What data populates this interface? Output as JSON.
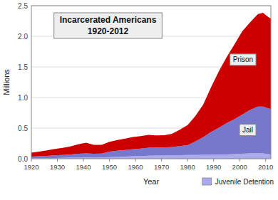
{
  "chart_data": {
    "type": "area",
    "stacked": true,
    "title": "Incarcerated Americans",
    "subtitle": "1920-2012",
    "x_label": "Year",
    "y_label": "Millions",
    "x": [
      1920,
      1923,
      1926,
      1929,
      1932,
      1935,
      1938,
      1941,
      1944,
      1947,
      1950,
      1953,
      1956,
      1959,
      1962,
      1965,
      1968,
      1971,
      1974,
      1977,
      1980,
      1983,
      1986,
      1989,
      1992,
      1995,
      1998,
      2001,
      2004,
      2007,
      2009,
      2011,
      2012
    ],
    "series": [
      {
        "name": "Juvenile Detention",
        "color": "#aaaaee",
        "values": [
          0.01,
          0.011,
          0.012,
          0.013,
          0.014,
          0.016,
          0.018,
          0.02,
          0.018,
          0.02,
          0.025,
          0.03,
          0.035,
          0.04,
          0.045,
          0.05,
          0.052,
          0.053,
          0.055,
          0.057,
          0.06,
          0.062,
          0.063,
          0.065,
          0.067,
          0.07,
          0.075,
          0.08,
          0.087,
          0.092,
          0.088,
          0.075,
          0.07
        ]
      },
      {
        "name": "Jail",
        "color": "#7777cc",
        "values": [
          0.025,
          0.03,
          0.035,
          0.042,
          0.048,
          0.055,
          0.062,
          0.068,
          0.063,
          0.063,
          0.09,
          0.1,
          0.108,
          0.115,
          0.12,
          0.13,
          0.13,
          0.13,
          0.138,
          0.148,
          0.16,
          0.22,
          0.29,
          0.37,
          0.44,
          0.51,
          0.57,
          0.64,
          0.71,
          0.76,
          0.765,
          0.748,
          0.74
        ]
      },
      {
        "name": "Prison",
        "color": "#cc0000",
        "values": [
          0.065,
          0.075,
          0.09,
          0.105,
          0.115,
          0.13,
          0.155,
          0.175,
          0.145,
          0.145,
          0.16,
          0.175,
          0.185,
          0.2,
          0.205,
          0.21,
          0.2,
          0.2,
          0.215,
          0.27,
          0.33,
          0.415,
          0.53,
          0.73,
          0.92,
          1.08,
          1.22,
          1.36,
          1.43,
          1.51,
          1.53,
          1.49,
          1.48
        ]
      }
    ],
    "xlim": [
      1920,
      2012
    ],
    "ylim": [
      0,
      2.5
    ],
    "xticks": [
      1920,
      1930,
      1940,
      1950,
      1960,
      1970,
      1980,
      1990,
      2000,
      2010
    ],
    "yticks": [
      {
        "value": 0,
        "label": "0.0"
      },
      0.5,
      {
        "value": 1.0,
        "label": "1.0"
      },
      1.5,
      {
        "value": 2.0,
        "label": "2.0"
      },
      2.5
    ],
    "grid": true,
    "legend": "lower right"
  }
}
